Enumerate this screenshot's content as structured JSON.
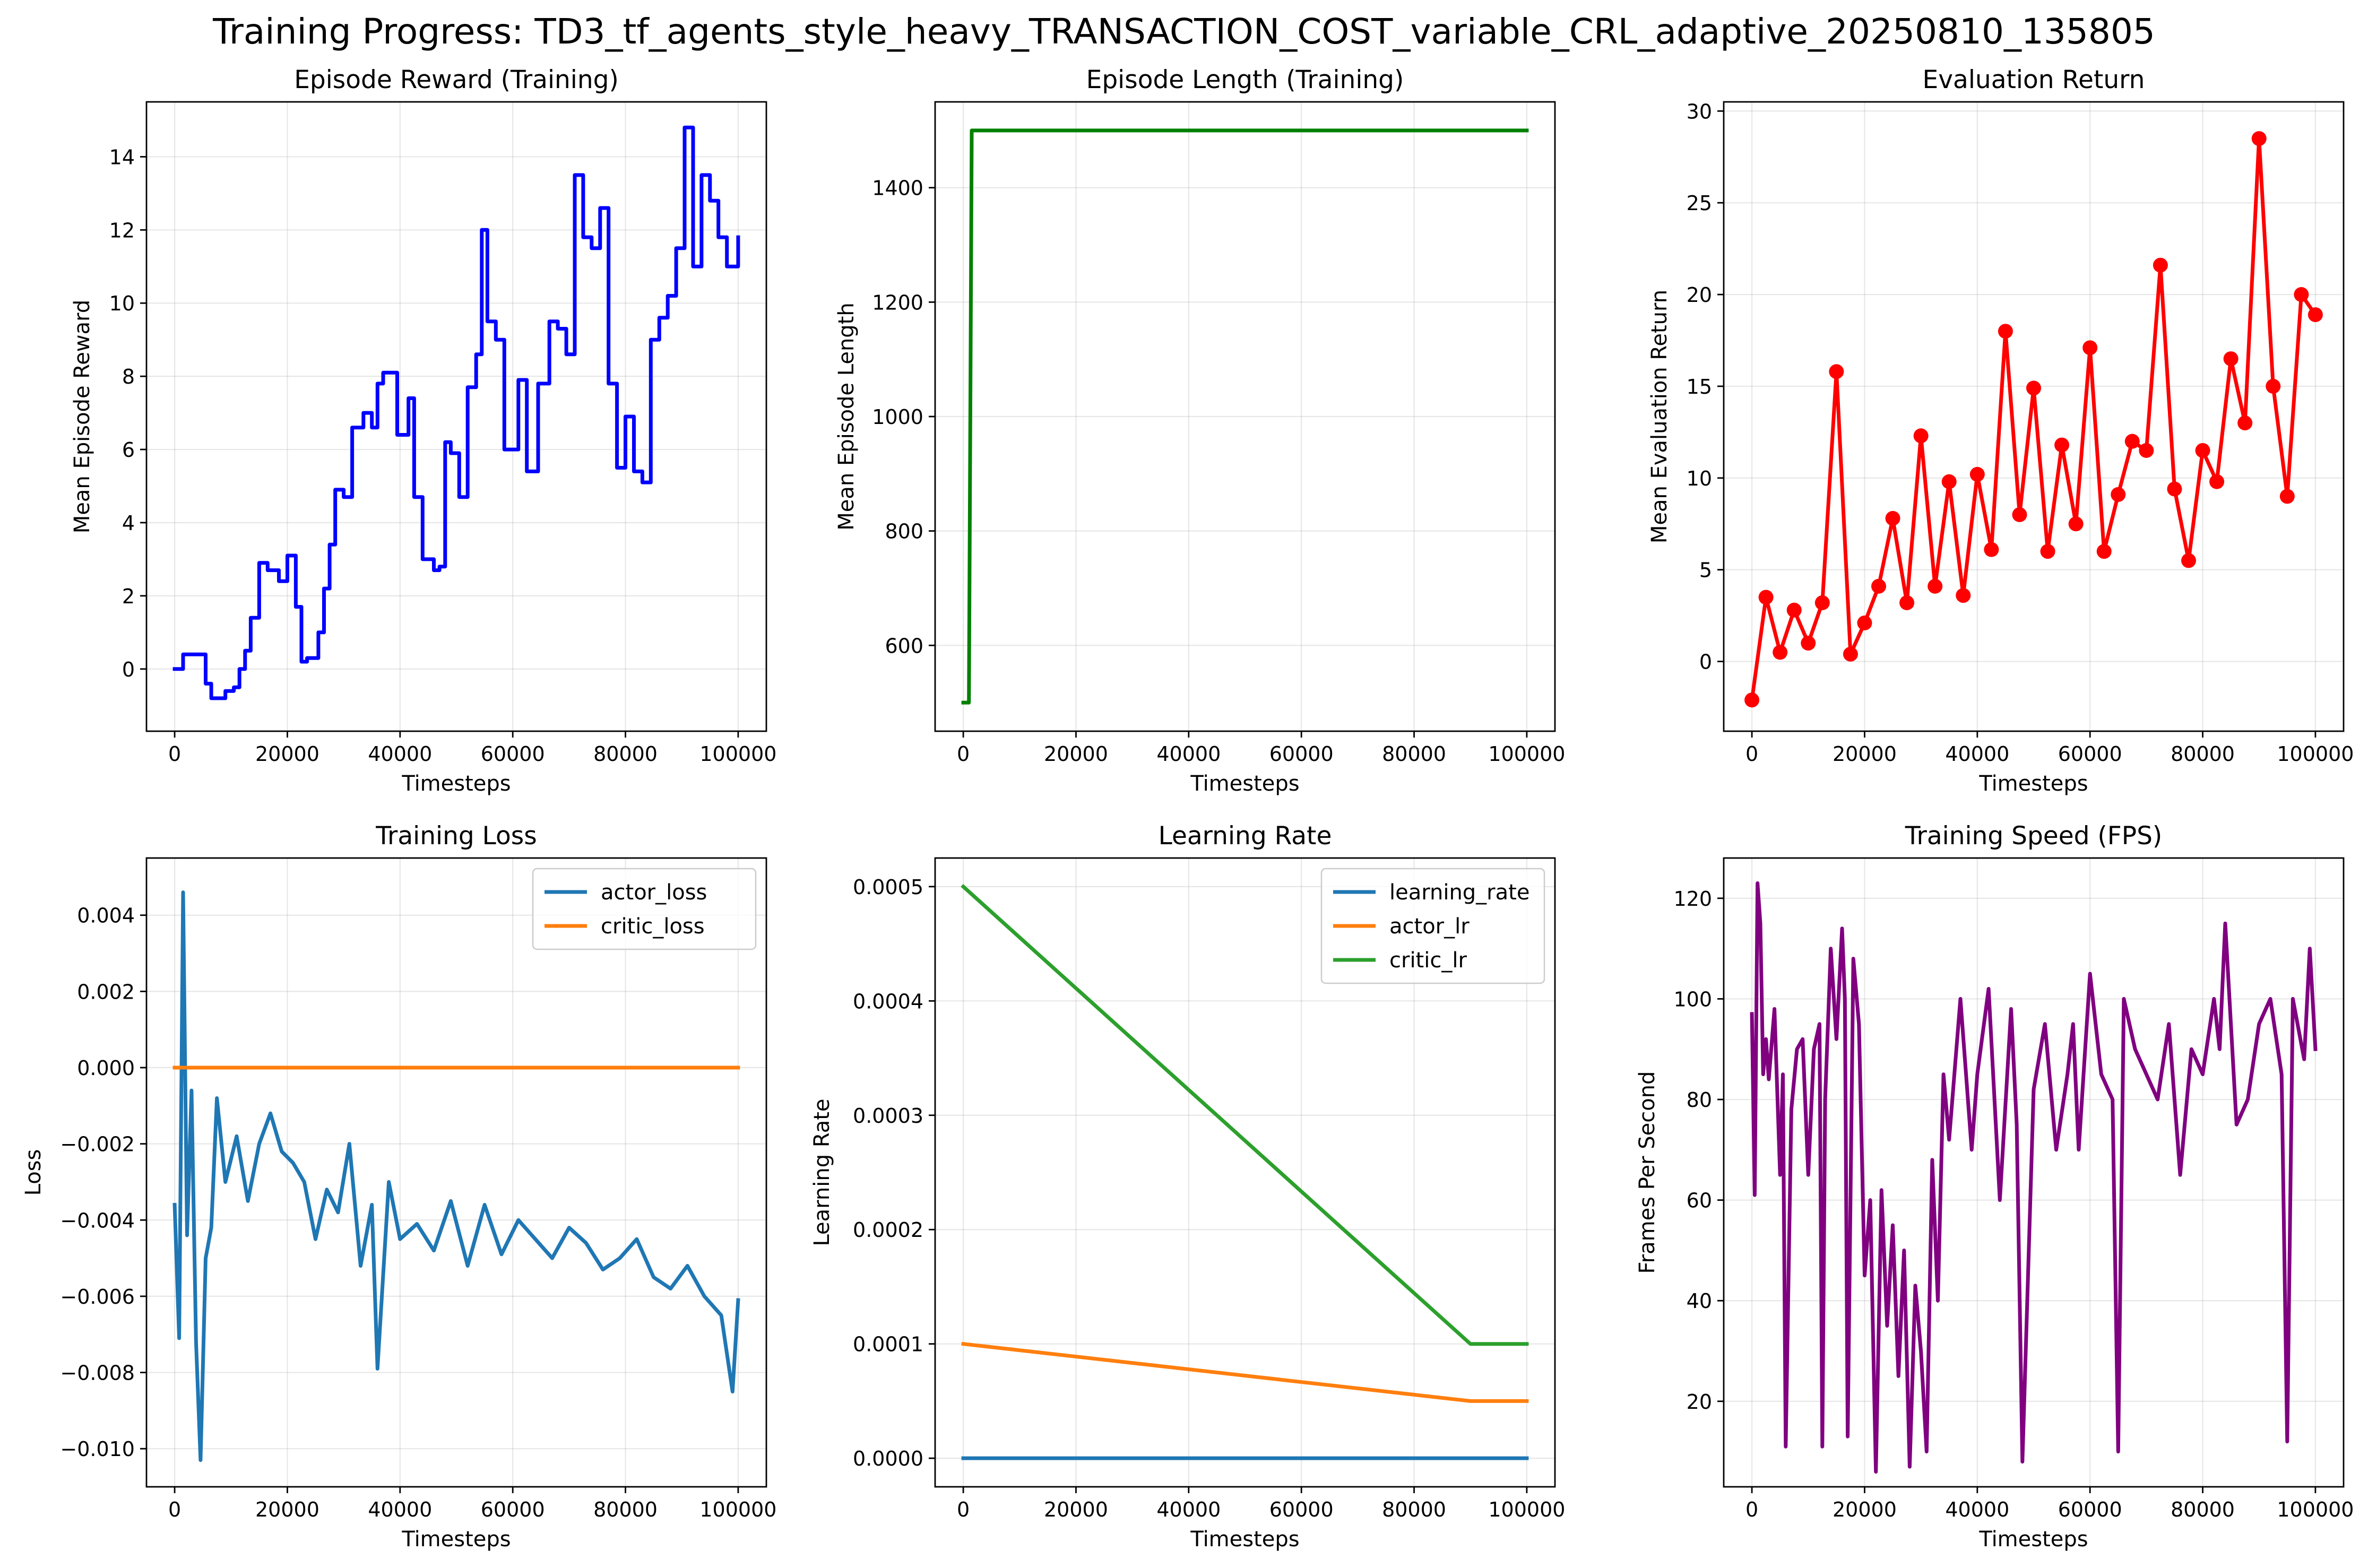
{
  "figure": {
    "title": "Training Progress: TD3_tf_agents_style_heavy_TRANSACTION_COST_variable_CRL_adaptive_20250810_135805"
  },
  "chart_data": [
    {
      "type": "line",
      "title": "Episode Reward (Training)",
      "xlabel": "Timesteps",
      "ylabel": "Mean Episode Reward",
      "xlim": [
        -5000,
        105000
      ],
      "ylim": [
        -1.7,
        15.5
      ],
      "xticks": [
        0,
        20000,
        40000,
        60000,
        80000,
        100000
      ],
      "yticks": [
        0,
        2,
        4,
        6,
        8,
        10,
        12,
        14
      ],
      "grid": true,
      "series": [
        {
          "color": "#0000ff",
          "step": true,
          "x": [
            0,
            1500,
            4000,
            5500,
            6500,
            8000,
            9000,
            10500,
            11500,
            12500,
            13500,
            15000,
            16500,
            18500,
            20000,
            21500,
            22500,
            23500,
            25500,
            26500,
            27500,
            28500,
            30000,
            31500,
            32500,
            33500,
            35000,
            36000,
            37000,
            38500,
            39500,
            40500,
            41500,
            42500,
            44000,
            45000,
            46000,
            47000,
            48000,
            49000,
            50500,
            52000,
            53500,
            54500,
            55500,
            57000,
            58500,
            59500,
            61000,
            62500,
            64500,
            66500,
            68000,
            69500,
            71000,
            72500,
            74000,
            75500,
            77000,
            78500,
            80000,
            81500,
            83000,
            84500,
            86000,
            87500,
            89000,
            90500,
            92000,
            93500,
            95000,
            96500,
            98000,
            100000
          ],
          "values": [
            0.0,
            0.4,
            0.4,
            -0.4,
            -0.8,
            -0.8,
            -0.6,
            -0.5,
            0.0,
            0.5,
            1.4,
            2.9,
            2.7,
            2.4,
            3.1,
            1.7,
            0.2,
            0.3,
            1.0,
            2.2,
            3.4,
            4.9,
            4.7,
            6.6,
            6.6,
            7.0,
            6.6,
            7.8,
            8.1,
            8.1,
            6.4,
            6.4,
            7.4,
            4.7,
            3.0,
            3.0,
            2.7,
            2.8,
            6.2,
            5.9,
            4.7,
            7.7,
            8.6,
            12.0,
            9.5,
            9.0,
            6.0,
            6.0,
            7.9,
            5.4,
            7.8,
            9.5,
            9.3,
            8.6,
            13.5,
            11.8,
            11.5,
            12.6,
            7.8,
            5.5,
            6.9,
            5.4,
            5.1,
            9.0,
            9.6,
            10.2,
            11.5,
            14.8,
            11.0,
            13.5,
            12.8,
            11.8,
            11.0,
            11.8
          ]
        }
      ]
    },
    {
      "type": "line",
      "title": "Episode Length (Training)",
      "xlabel": "Timesteps",
      "ylabel": "Mean Episode Length",
      "xlim": [
        -5000,
        105000
      ],
      "ylim": [
        450,
        1550
      ],
      "xticks": [
        0,
        20000,
        40000,
        60000,
        80000,
        100000
      ],
      "yticks": [
        600,
        800,
        1000,
        1200,
        1400
      ],
      "grid": true,
      "series": [
        {
          "color": "#008000",
          "x": [
            0,
            1000,
            1500,
            100000
          ],
          "values": [
            500,
            500,
            1500,
            1500
          ]
        }
      ]
    },
    {
      "type": "line",
      "title": "Evaluation Return",
      "xlabel": "Timesteps",
      "ylabel": "Mean Evaluation Return",
      "xlim": [
        -5000,
        105000
      ],
      "ylim": [
        -3.8,
        30.5
      ],
      "xticks": [
        0,
        20000,
        40000,
        60000,
        80000,
        100000
      ],
      "yticks": [
        0,
        5,
        10,
        15,
        20,
        25,
        30
      ],
      "grid": true,
      "markers": true,
      "series": [
        {
          "color": "#ff0000",
          "x": [
            0,
            2500,
            5000,
            7500,
            10000,
            12500,
            15000,
            17500,
            20000,
            22500,
            25000,
            27500,
            30000,
            32500,
            35000,
            37500,
            40000,
            42500,
            45000,
            47500,
            50000,
            52500,
            55000,
            57500,
            60000,
            62500,
            65000,
            67500,
            70000,
            72500,
            75000,
            77500,
            80000,
            82500,
            85000,
            87500,
            90000,
            92500,
            95000,
            97500,
            100000
          ],
          "values": [
            -2.1,
            3.5,
            0.5,
            2.8,
            1.0,
            3.2,
            15.8,
            0.4,
            2.1,
            4.1,
            7.8,
            3.2,
            12.3,
            4.1,
            9.8,
            3.6,
            10.2,
            6.1,
            18.0,
            8.0,
            14.9,
            6.0,
            11.8,
            7.5,
            17.1,
            6.0,
            9.1,
            12.0,
            11.5,
            21.6,
            9.4,
            5.5,
            11.5,
            9.8,
            16.5,
            13.0,
            28.5,
            15.0,
            9.0,
            20.0,
            18.9
          ]
        }
      ]
    },
    {
      "type": "line",
      "title": "Training Loss",
      "xlabel": "Timesteps",
      "ylabel": "Loss",
      "xlim": [
        -5000,
        105000
      ],
      "ylim": [
        -0.011,
        0.0055
      ],
      "xticks": [
        0,
        20000,
        40000,
        60000,
        80000,
        100000
      ],
      "yticks": [
        -0.01,
        -0.008,
        -0.006,
        -0.004,
        -0.002,
        0.0,
        0.002,
        0.004
      ],
      "ytick_labels": [
        "−0.010",
        "−0.008",
        "−0.006",
        "−0.004",
        "−0.002",
        "0.000",
        "0.002",
        "0.004"
      ],
      "grid": true,
      "legend": "top-right",
      "series": [
        {
          "name": "actor_loss",
          "color": "#1f77b4",
          "x": [
            0,
            800,
            1500,
            2200,
            3000,
            3800,
            4600,
            5500,
            6500,
            7500,
            9000,
            11000,
            13000,
            15000,
            17000,
            19000,
            21000,
            23000,
            25000,
            27000,
            29000,
            31000,
            33000,
            35000,
            36000,
            38000,
            40000,
            43000,
            46000,
            49000,
            52000,
            55000,
            58000,
            61000,
            64000,
            67000,
            70000,
            73000,
            76000,
            79000,
            82000,
            85000,
            88000,
            91000,
            94000,
            97000,
            99000,
            100000
          ],
          "values": [
            -0.0036,
            -0.0071,
            0.0046,
            -0.0044,
            -0.0006,
            -0.0072,
            -0.0103,
            -0.005,
            -0.0042,
            -0.0008,
            -0.003,
            -0.0018,
            -0.0035,
            -0.002,
            -0.0012,
            -0.0022,
            -0.0025,
            -0.003,
            -0.0045,
            -0.0032,
            -0.0038,
            -0.002,
            -0.0052,
            -0.0036,
            -0.0079,
            -0.003,
            -0.0045,
            -0.0041,
            -0.0048,
            -0.0035,
            -0.0052,
            -0.0036,
            -0.0049,
            -0.004,
            -0.0045,
            -0.005,
            -0.0042,
            -0.0046,
            -0.0053,
            -0.005,
            -0.0045,
            -0.0055,
            -0.0058,
            -0.0052,
            -0.006,
            -0.0065,
            -0.0085,
            -0.0061
          ]
        },
        {
          "name": "critic_loss",
          "color": "#ff7f0e",
          "x": [
            0,
            100000
          ],
          "values": [
            0.0,
            0.0
          ]
        }
      ]
    },
    {
      "type": "line",
      "title": "Learning Rate",
      "xlabel": "Timesteps",
      "ylabel": "Learning Rate",
      "xlim": [
        -5000,
        105000
      ],
      "ylim": [
        -2.5e-05,
        0.000525
      ],
      "xticks": [
        0,
        20000,
        40000,
        60000,
        80000,
        100000
      ],
      "yticks": [
        0.0,
        0.0001,
        0.0002,
        0.0003,
        0.0004,
        0.0005
      ],
      "ytick_labels": [
        "0.0000",
        "0.0001",
        "0.0002",
        "0.0003",
        "0.0004",
        "0.0005"
      ],
      "grid": true,
      "legend": "top-right",
      "series": [
        {
          "name": "learning_rate",
          "color": "#1f77b4",
          "x": [
            0,
            100000
          ],
          "values": [
            0.0,
            0.0
          ]
        },
        {
          "name": "actor_lr",
          "color": "#ff7f0e",
          "x": [
            0,
            90000,
            100000
          ],
          "values": [
            0.0001,
            5e-05,
            5e-05
          ]
        },
        {
          "name": "critic_lr",
          "color": "#2ca02c",
          "x": [
            0,
            90000,
            100000
          ],
          "values": [
            0.0005,
            0.0001,
            0.0001
          ]
        }
      ]
    },
    {
      "type": "line",
      "title": "Training Speed (FPS)",
      "xlabel": "Timesteps",
      "ylabel": "Frames Per Second",
      "xlim": [
        -5000,
        105000
      ],
      "ylim": [
        3,
        128
      ],
      "xticks": [
        0,
        20000,
        40000,
        60000,
        80000,
        100000
      ],
      "yticks": [
        20,
        40,
        60,
        80,
        100,
        120
      ],
      "grid": true,
      "series": [
        {
          "color": "#800080",
          "x": [
            0,
            500,
            1000,
            1500,
            2000,
            2500,
            3000,
            4000,
            5000,
            5500,
            6000,
            7000,
            8000,
            9000,
            10000,
            11000,
            12000,
            12500,
            13000,
            14000,
            15000,
            16000,
            16500,
            17000,
            18000,
            19000,
            20000,
            21000,
            22000,
            23000,
            24000,
            25000,
            26000,
            27000,
            28000,
            29000,
            30000,
            31000,
            32000,
            33000,
            34000,
            35000,
            37000,
            39000,
            40000,
            42000,
            44000,
            46000,
            47000,
            48000,
            50000,
            52000,
            54000,
            56000,
            57000,
            58000,
            60000,
            62000,
            64000,
            65000,
            66000,
            68000,
            70000,
            72000,
            74000,
            76000,
            78000,
            80000,
            82000,
            83000,
            84000,
            86000,
            88000,
            90000,
            92000,
            94000,
            95000,
            96000,
            98000,
            99000,
            100000
          ],
          "values": [
            97,
            61,
            123,
            115,
            85,
            92,
            84,
            98,
            65,
            85,
            11,
            78,
            90,
            92,
            65,
            90,
            95,
            11,
            80,
            110,
            92,
            114,
            100,
            13,
            108,
            95,
            45,
            60,
            6,
            62,
            35,
            55,
            25,
            50,
            7,
            43,
            30,
            10,
            68,
            40,
            85,
            72,
            100,
            70,
            85,
            102,
            60,
            98,
            75,
            8,
            82,
            95,
            70,
            85,
            95,
            70,
            105,
            85,
            80,
            10,
            100,
            90,
            85,
            80,
            95,
            65,
            90,
            85,
            100,
            90,
            115,
            75,
            80,
            95,
            100,
            85,
            12,
            100,
            88,
            110,
            90
          ]
        }
      ]
    }
  ]
}
